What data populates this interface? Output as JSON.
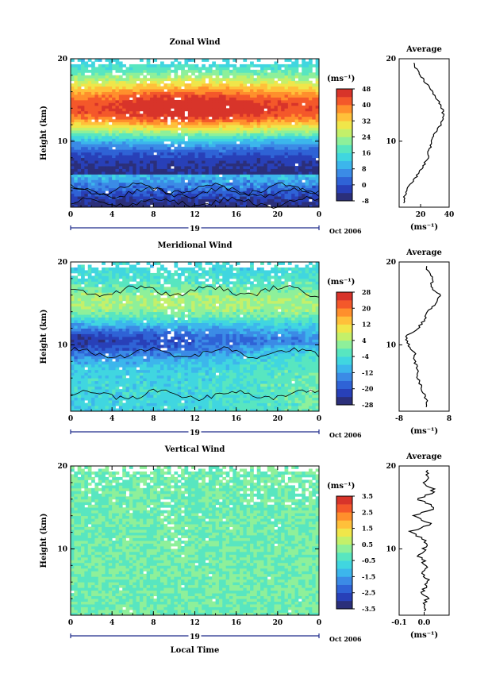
{
  "figure": {
    "date_label": "Oct 2006",
    "day_label": "19",
    "xlabel": "Local Time"
  },
  "colors": {
    "palette": [
      "#2b2f7a",
      "#2840b8",
      "#2f63d6",
      "#3b8be6",
      "#3cb6ec",
      "#40d6e0",
      "#58e6c0",
      "#8ef09a",
      "#c4f06a",
      "#f0e64a",
      "#ffc03a",
      "#ff8f2c",
      "#f4582a",
      "#d8342a"
    ],
    "frame": "#000000",
    "background": "#ffffff"
  },
  "chart_data": [
    {
      "id": "zonal",
      "type": "heatmap",
      "title": "Zonal Wind",
      "xlabel": "",
      "ylabel": "Height (km)",
      "xlim": [
        0,
        24
      ],
      "ylim": [
        2,
        20
      ],
      "xticks": [
        "0",
        "4",
        "8",
        "12",
        "16",
        "20",
        "0"
      ],
      "yticks": [
        "10",
        "20"
      ],
      "colorbar": {
        "unit": "(ms⁻¹)",
        "vmin": -8,
        "vmax": 48,
        "ticks": [
          "48",
          "40",
          "32",
          "24",
          "16",
          "8",
          "0",
          "-8"
        ]
      },
      "zero_contour": true,
      "profile": {
        "title": "Average",
        "xlabel": "(ms⁻¹)",
        "xlim": [
          5,
          40
        ],
        "xticks": [
          "20",
          "40"
        ],
        "yticks": [
          "10",
          "20"
        ],
        "heights": [
          3,
          4,
          5,
          6,
          7,
          8,
          9,
          10,
          11,
          12,
          13,
          14,
          15,
          16,
          17,
          18,
          19
        ],
        "values": [
          8,
          10,
          14,
          18,
          22,
          25,
          26,
          28,
          30,
          34,
          36,
          35,
          32,
          28,
          24,
          20,
          16
        ]
      },
      "field": {
        "mode": "jet",
        "base": -6,
        "peak": 46,
        "jet_height": 14,
        "jet_width": 3.8,
        "near_surface_min": -8,
        "upper_value": 18,
        "dark_band": [
          2.5,
          5
        ]
      }
    },
    {
      "id": "meridional",
      "type": "heatmap",
      "title": "Meridional Wind",
      "xlabel": "",
      "ylabel": "Height (km)",
      "xlim": [
        0,
        24
      ],
      "ylim": [
        2,
        20
      ],
      "xticks": [
        "0",
        "4",
        "8",
        "12",
        "16",
        "20",
        "0"
      ],
      "yticks": [
        "10",
        "20"
      ],
      "colorbar": {
        "unit": "(ms⁻¹)",
        "vmin": -28,
        "vmax": 28,
        "ticks": [
          "28",
          "20",
          "12",
          "4",
          "-4",
          "-12",
          "-20",
          "-28"
        ]
      },
      "zero_contour": true,
      "profile": {
        "title": "Average",
        "xlabel": "(ms⁻¹)",
        "xlim": [
          -8,
          8
        ],
        "xticks": [
          "-8",
          "8"
        ],
        "yticks": [
          "10",
          "20"
        ],
        "heights": [
          3,
          4,
          5,
          6,
          7,
          8,
          9,
          10,
          11,
          12,
          13,
          14,
          15,
          16,
          17,
          18,
          19
        ],
        "values": [
          1,
          0,
          -1,
          -2,
          -2,
          -3,
          -3,
          -5,
          -6,
          -2,
          0,
          1,
          4,
          5,
          2,
          3,
          1
        ]
      },
      "field": {
        "mode": "meridional",
        "lower_value": -6,
        "min_value": -24,
        "min_height": 10.5,
        "upper_value": 10,
        "upper_height": 15
      }
    },
    {
      "id": "vertical",
      "type": "heatmap",
      "title": "Vertical Wind",
      "xlabel": "Local Time",
      "ylabel": "Height (km)",
      "xlim": [
        0,
        24
      ],
      "ylim": [
        2,
        20
      ],
      "xticks": [
        "0",
        "4",
        "8",
        "12",
        "16",
        "20",
        "0"
      ],
      "yticks": [
        "10",
        "20"
      ],
      "colorbar": {
        "unit": "(ms⁻¹)",
        "vmin": -3.5,
        "vmax": 3.5,
        "ticks": [
          "3.5",
          "2.5",
          "1.5",
          "0.5",
          "-0.5",
          "-1.5",
          "-2.5",
          "-3.5"
        ]
      },
      "zero_contour": false,
      "profile": {
        "title": "Average",
        "xlabel": "(ms⁻¹)",
        "xlim": [
          -0.1,
          0.1
        ],
        "xticks": [
          "-0.1",
          "0.0"
        ],
        "yticks": [
          "10",
          "20"
        ],
        "heights": [
          3,
          4,
          5,
          6,
          7,
          8,
          9,
          10,
          11,
          12,
          13,
          14,
          15,
          16,
          17,
          18,
          19
        ],
        "values": [
          0.0,
          0.01,
          -0.01,
          0.02,
          0.0,
          0.01,
          -0.02,
          0.0,
          0.01,
          -0.06,
          0.03,
          -0.04,
          0.05,
          -0.02,
          0.04,
          0.0,
          0.02
        ]
      },
      "field": {
        "mode": "vertical",
        "base": 0.0,
        "noise": 0.45
      }
    }
  ]
}
